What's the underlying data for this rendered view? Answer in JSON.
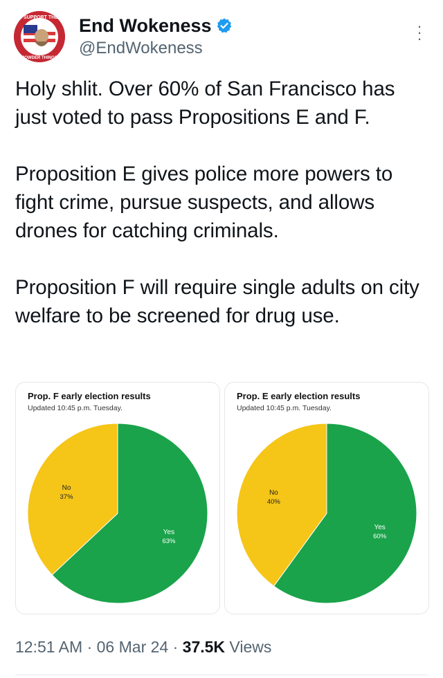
{
  "tweet": {
    "display_name": "End Wokeness",
    "handle": "@EndWokeness",
    "avatar_text_top": "I SUPPORT THE",
    "avatar_text_bottom": "POWDER THINGS",
    "text": "Holy shlit. Over 60% of San Francisco has just voted to pass Propositions E and F.\n\nProposition E gives police more powers to fight crime, pursue suspects, and allows drones for catching criminals.\n\nProposition F will require single adults on city welfare to be screened for drug use.",
    "time": "12:51 AM",
    "sep1": " · ",
    "date": "06 Mar 24",
    "sep2": " · ",
    "views_count": "37.5K",
    "views_label": " Views"
  },
  "colors": {
    "yes": "#1aa34a",
    "no": "#f5c518",
    "verified": "#1d9bf0"
  },
  "chart_data": [
    {
      "type": "pie",
      "title": "Prop. F early election results",
      "subtitle": "Updated 10:45 p.m. Tuesday.",
      "slices": [
        {
          "label": "Yes",
          "value": 63,
          "display": "63%",
          "color": "#1aa34a"
        },
        {
          "label": "No",
          "value": 37,
          "display": "37%",
          "color": "#f5c518"
        }
      ]
    },
    {
      "type": "pie",
      "title": "Prop. E early election results",
      "subtitle": "Updated 10:45 p.m. Tuesday.",
      "slices": [
        {
          "label": "Yes",
          "value": 60,
          "display": "60%",
          "color": "#1aa34a"
        },
        {
          "label": "No",
          "value": 40,
          "display": "40%",
          "color": "#f5c518"
        }
      ]
    }
  ]
}
